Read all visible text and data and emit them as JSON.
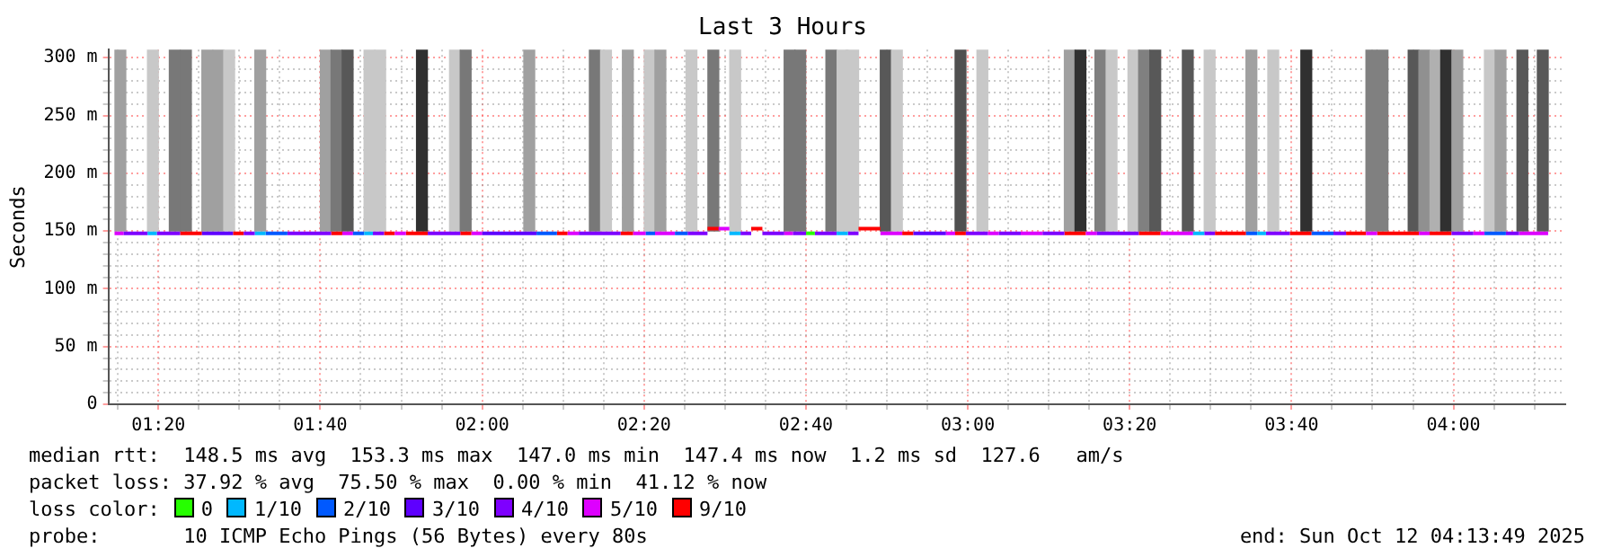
{
  "chart_data": {
    "type": "line",
    "title": "Last 3 Hours",
    "ylabel": "Seconds",
    "legend_title": "loss color:",
    "legend": "bottom",
    "grid": true,
    "marker": "none",
    "xlim": [
      1.2303,
      4.2303
    ],
    "xticks": [
      {
        "value": 1.25,
        "label": null
      },
      {
        "value": 1.3333,
        "label": "01:20"
      },
      {
        "value": 1.4167,
        "label": null
      },
      {
        "value": 1.5,
        "label": null
      },
      {
        "value": 1.5833,
        "label": null
      },
      {
        "value": 1.6667,
        "label": "01:40"
      },
      {
        "value": 1.75,
        "label": null
      },
      {
        "value": 1.8333,
        "label": null
      },
      {
        "value": 1.9167,
        "label": null
      },
      {
        "value": 2,
        "label": "02:00"
      },
      {
        "value": 2.0833,
        "label": null
      },
      {
        "value": 2.1667,
        "label": null
      },
      {
        "value": 2.25,
        "label": null
      },
      {
        "value": 2.3333,
        "label": "02:20"
      },
      {
        "value": 2.4167,
        "label": null
      },
      {
        "value": 2.5,
        "label": null
      },
      {
        "value": 2.5833,
        "label": null
      },
      {
        "value": 2.6667,
        "label": "02:40"
      },
      {
        "value": 2.75,
        "label": null
      },
      {
        "value": 2.8333,
        "label": null
      },
      {
        "value": 2.9167,
        "label": null
      },
      {
        "value": 3,
        "label": "03:00"
      },
      {
        "value": 3.0833,
        "label": null
      },
      {
        "value": 3.1667,
        "label": null
      },
      {
        "value": 3.25,
        "label": null
      },
      {
        "value": 3.3333,
        "label": "03:20"
      },
      {
        "value": 3.4167,
        "label": null
      },
      {
        "value": 3.5,
        "label": null
      },
      {
        "value": 3.5833,
        "label": null
      },
      {
        "value": 3.6667,
        "label": "03:40"
      },
      {
        "value": 3.75,
        "label": null
      },
      {
        "value": 3.8333,
        "label": null
      },
      {
        "value": 3.9167,
        "label": null
      },
      {
        "value": 4,
        "label": "04:00"
      },
      {
        "value": 4.0833,
        "label": null
      },
      {
        "value": 4.1667,
        "label": null
      }
    ],
    "ylim": [
      0,
      307
    ],
    "yticks": [
      0,
      {
        "value": 10,
        "label": null
      },
      {
        "value": 20,
        "label": null
      },
      {
        "value": 30,
        "label": null
      },
      {
        "value": 40,
        "label": null
      },
      {
        "value": 50,
        "label": "50 m"
      },
      {
        "value": 60,
        "label": null
      },
      {
        "value": 70,
        "label": null
      },
      {
        "value": 80,
        "label": null
      },
      {
        "value": 90,
        "label": null
      },
      {
        "value": 100,
        "label": "100 m"
      },
      {
        "value": 110,
        "label": null
      },
      {
        "value": 120,
        "label": null
      },
      {
        "value": 130,
        "label": null
      },
      {
        "value": 140,
        "label": null
      },
      {
        "value": 150,
        "label": "150 m"
      },
      {
        "value": 160,
        "label": null
      },
      {
        "value": 170,
        "label": null
      },
      {
        "value": 180,
        "label": null
      },
      {
        "value": 190,
        "label": null
      },
      {
        "value": 200,
        "label": "200 m"
      },
      {
        "value": 210,
        "label": null
      },
      {
        "value": 220,
        "label": null
      },
      {
        "value": 230,
        "label": null
      },
      {
        "value": 240,
        "label": null
      },
      {
        "value": 250,
        "label": "250 m"
      },
      {
        "value": 260,
        "label": null
      },
      {
        "value": 270,
        "label": null
      },
      {
        "value": 280,
        "label": null
      },
      {
        "value": 290,
        "label": null
      },
      {
        "value": 300,
        "label": "300 m"
      }
    ],
    "series": [
      {
        "type": "bar",
        "x": [
          1.255,
          1.322,
          1.367,
          1.39,
          1.434,
          1.457,
          1.479,
          1.543,
          1.678,
          1.7,
          1.723,
          1.768,
          1.79,
          1.876,
          1.944,
          1.966,
          2.097,
          2.232,
          2.255,
          2.3,
          2.345,
          2.367,
          2.431,
          2.476,
          2.521,
          2.633,
          2.655,
          2.719,
          2.742,
          2.764,
          2.831,
          2.854,
          2.985,
          3.03,
          3.21,
          3.232,
          3.273,
          3.296,
          3.341,
          3.363,
          3.386,
          3.453,
          3.498,
          3.584,
          3.629,
          3.697,
          3.831,
          3.854,
          3.918,
          3.94,
          3.963,
          3.985,
          4.008,
          4.075,
          4.097,
          4.142,
          4.184
        ],
        "base": [
          150,
          150,
          150,
          150,
          150,
          150,
          150,
          150,
          150,
          150,
          150,
          150,
          150,
          150,
          150,
          150,
          150,
          150,
          150,
          150,
          150,
          150,
          150,
          150,
          150,
          150,
          150,
          150,
          150,
          150,
          150,
          150,
          150,
          150,
          150,
          150,
          150,
          150,
          150,
          150,
          150,
          150,
          150,
          150,
          150,
          150,
          150,
          150,
          150,
          150,
          150,
          150,
          150,
          150,
          150,
          150,
          150
        ],
        "values": [
          157,
          157,
          157,
          157,
          157,
          157,
          157,
          157,
          157,
          157,
          157,
          157,
          157,
          157,
          157,
          157,
          157,
          157,
          157,
          157,
          157,
          157,
          157,
          157,
          157,
          157,
          157,
          157,
          157,
          157,
          157,
          157,
          157,
          157,
          157,
          157,
          157,
          157,
          157,
          157,
          157,
          157,
          157,
          157,
          157,
          157,
          157,
          157,
          157,
          157,
          157,
          157,
          157,
          157,
          157,
          157,
          157
        ],
        "colors": [
          "#a0a0a0",
          "#c8c8c8",
          "#787878",
          "#787878",
          "#a0a0a0",
          "#a0a0a0",
          "#c8c8c8",
          "#a0a0a0",
          "#a0a0a0",
          "#787878",
          "#585858",
          "#c8c8c8",
          "#c8c8c8",
          "#303030",
          "#c8c8c8",
          "#787878",
          "#a0a0a0",
          "#787878",
          "#c8c8c8",
          "#a0a0a0",
          "#c8c8c8",
          "#a0a0a0",
          "#c8c8c8",
          "#787878",
          "#c8c8c8",
          "#787878",
          "#787878",
          "#787878",
          "#c8c8c8",
          "#c8c8c8",
          "#585858",
          "#c8c8c8",
          "#505050",
          "#c8c8c8",
          "#a0a0a0",
          "#303030",
          "#808080",
          "#c8c8c8",
          "#c8c8c8",
          "#808080",
          "#585858",
          "#585858",
          "#c8c8c8",
          "#a0a0a0",
          "#c8c8c8",
          "#303030",
          "#808080",
          "#808080",
          "#585858",
          "#909090",
          "#b0b0b0",
          "#303030",
          "#a0a0a0",
          "#c8c8c8",
          "#a0a0a0",
          "#585858",
          "#585858"
        ]
      },
      {
        "name": "0",
        "color": "#26ff00",
        "x": [
          2.667,
          2.685
        ],
        "values": [
          148,
          148
        ]
      },
      {
        "name": "1/10",
        "color": "#00b8ff",
        "x": [
          1.311,
          1.33,
          null,
          1.532,
          1.554,
          null,
          1.757,
          1.775,
          null,
          2.509,
          2.532,
          null,
          2.73,
          2.753,
          null,
          3.464,
          3.487,
          null,
          3.596,
          3.614
        ],
        "values": [
          148,
          148,
          null,
          148,
          148,
          null,
          148,
          148,
          null,
          148,
          148,
          null,
          148,
          148,
          null,
          148,
          148,
          null,
          148,
          148
        ]
      },
      {
        "name": "2/10",
        "color": "#0059ff",
        "x": [
          1.554,
          1.599,
          null,
          1.734,
          1.757,
          null,
          2.112,
          2.154,
          null,
          2.337,
          2.356,
          null,
          2.397,
          2.423,
          null,
          3.573,
          3.596,
          null,
          3.708,
          3.753,
          null,
          4.064,
          4.108
        ],
        "values": [
          148,
          148,
          null,
          148,
          148,
          null,
          148,
          148,
          null,
          148,
          148,
          null,
          148,
          148,
          null,
          148,
          148,
          null,
          148,
          148,
          null,
          148,
          148
        ]
      },
      {
        "name": "3/10",
        "color": "#5e00ff",
        "x": [
          1.423,
          1.487,
          null,
          2.0,
          2.112,
          null,
          2.888,
          2.955
        ],
        "values": [
          148,
          148,
          null,
          148,
          148,
          null,
          148,
          148
        ]
      },
      {
        "name": "4/10",
        "color": "#7e00ff",
        "x": [
          1.262,
          1.311,
          null,
          1.33,
          1.378,
          null,
          1.509,
          1.532,
          null,
          1.599,
          1.689,
          null,
          1.775,
          1.798,
          null,
          1.888,
          1.955,
          null,
          2.199,
          2.285,
          null,
          2.423,
          2.464,
          null,
          2.532,
          2.554,
          null,
          2.577,
          2.622,
          null,
          2.64,
          2.667,
          null,
          2.685,
          2.73,
          null,
          2.753,
          2.775,
          null,
          2.996,
          3.041,
          null,
          3.064,
          3.109,
          null,
          3.154,
          3.199,
          null,
          3.266,
          3.352,
          null,
          3.487,
          3.509,
          null,
          3.614,
          3.663,
          null,
          3.753,
          3.779,
          null,
          3.996,
          4.041,
          null,
          4.108,
          4.135
        ],
        "values": [
          148,
          148,
          null,
          148,
          148,
          null,
          148,
          148,
          null,
          148,
          148,
          null,
          148,
          148,
          null,
          148,
          148,
          null,
          148,
          148,
          null,
          148,
          148,
          null,
          148,
          148,
          null,
          148,
          148,
          null,
          148,
          148,
          null,
          148,
          148,
          null,
          148,
          148,
          null,
          148,
          148,
          null,
          148,
          148,
          null,
          148,
          148,
          null,
          148,
          148,
          null,
          148,
          148,
          null,
          148,
          148,
          null,
          148,
          148,
          null,
          148,
          148,
          null,
          148,
          148
        ]
      },
      {
        "name": "5/10",
        "color": "#dd00ff",
        "x": [
          1.243,
          1.262,
          null,
          1.712,
          1.734,
          null,
          1.82,
          1.843,
          null,
          1.978,
          2.0,
          null,
          2.176,
          2.199,
          null,
          2.311,
          2.337,
          null,
          2.356,
          2.397,
          null,
          2.487,
          2.509,
          null,
          2.622,
          2.64,
          null,
          2.82,
          2.865,
          null,
          2.955,
          2.974,
          null,
          3.041,
          3.064,
          null,
          3.109,
          3.154,
          null,
          3.243,
          3.266,
          null,
          3.397,
          3.464,
          null,
          3.82,
          3.843,
          null,
          3.929,
          3.951,
          null,
          4.041,
          4.064,
          null,
          4.135,
          4.195
        ],
        "values": [
          148,
          148,
          null,
          148,
          148,
          null,
          148,
          148,
          null,
          148,
          148,
          null,
          148,
          148,
          null,
          148,
          148,
          null,
          148,
          148,
          null,
          152,
          152,
          null,
          148,
          148,
          null,
          148,
          148,
          null,
          148,
          148,
          null,
          148,
          148,
          null,
          148,
          148,
          null,
          148,
          148,
          null,
          148,
          148,
          null,
          148,
          148,
          null,
          148,
          148,
          null,
          148,
          148,
          null,
          148,
          148
        ]
      },
      {
        "name": "9/10",
        "color": "#ff0000",
        "x": [
          1.378,
          1.423,
          null,
          1.487,
          1.509,
          null,
          1.689,
          1.712,
          null,
          1.798,
          1.82,
          null,
          1.843,
          1.888,
          null,
          1.955,
          1.978,
          null,
          2.154,
          2.176,
          null,
          2.285,
          2.311,
          null,
          2.464,
          2.487,
          null,
          2.554,
          2.577,
          null,
          2.775,
          2.82,
          null,
          2.865,
          2.888,
          null,
          2.974,
          2.996,
          null,
          3.199,
          3.243,
          null,
          3.352,
          3.397,
          null,
          3.509,
          3.573,
          null,
          3.663,
          3.708,
          null,
          3.779,
          3.82,
          null,
          3.843,
          3.929,
          null,
          3.951,
          3.996
        ],
        "values": [
          148,
          148,
          null,
          148,
          148,
          null,
          148,
          148,
          null,
          148,
          148,
          null,
          148,
          148,
          null,
          148,
          148,
          null,
          148,
          148,
          null,
          148,
          148,
          null,
          152,
          152,
          null,
          152,
          152,
          null,
          152,
          152,
          null,
          148,
          148,
          null,
          148,
          148,
          null,
          148,
          148,
          null,
          148,
          148,
          null,
          148,
          148,
          null,
          148,
          148,
          null,
          148,
          148,
          null,
          148,
          148,
          null,
          148,
          148
        ]
      }
    ],
    "annotations": [
      "median rtt:  148.5 ms avg  153.3 ms max  147.0 ms min  147.4 ms now  1.2 ms sd  127.6   am/s",
      "packet loss: 37.92 % avg  75.50 % max  0.00 % min  41.12 % now",
      "probe:       10 ICMP Echo Pings (56 Bytes) every 80s",
      "end: Sun Oct 12 04:13:49 2025"
    ]
  }
}
